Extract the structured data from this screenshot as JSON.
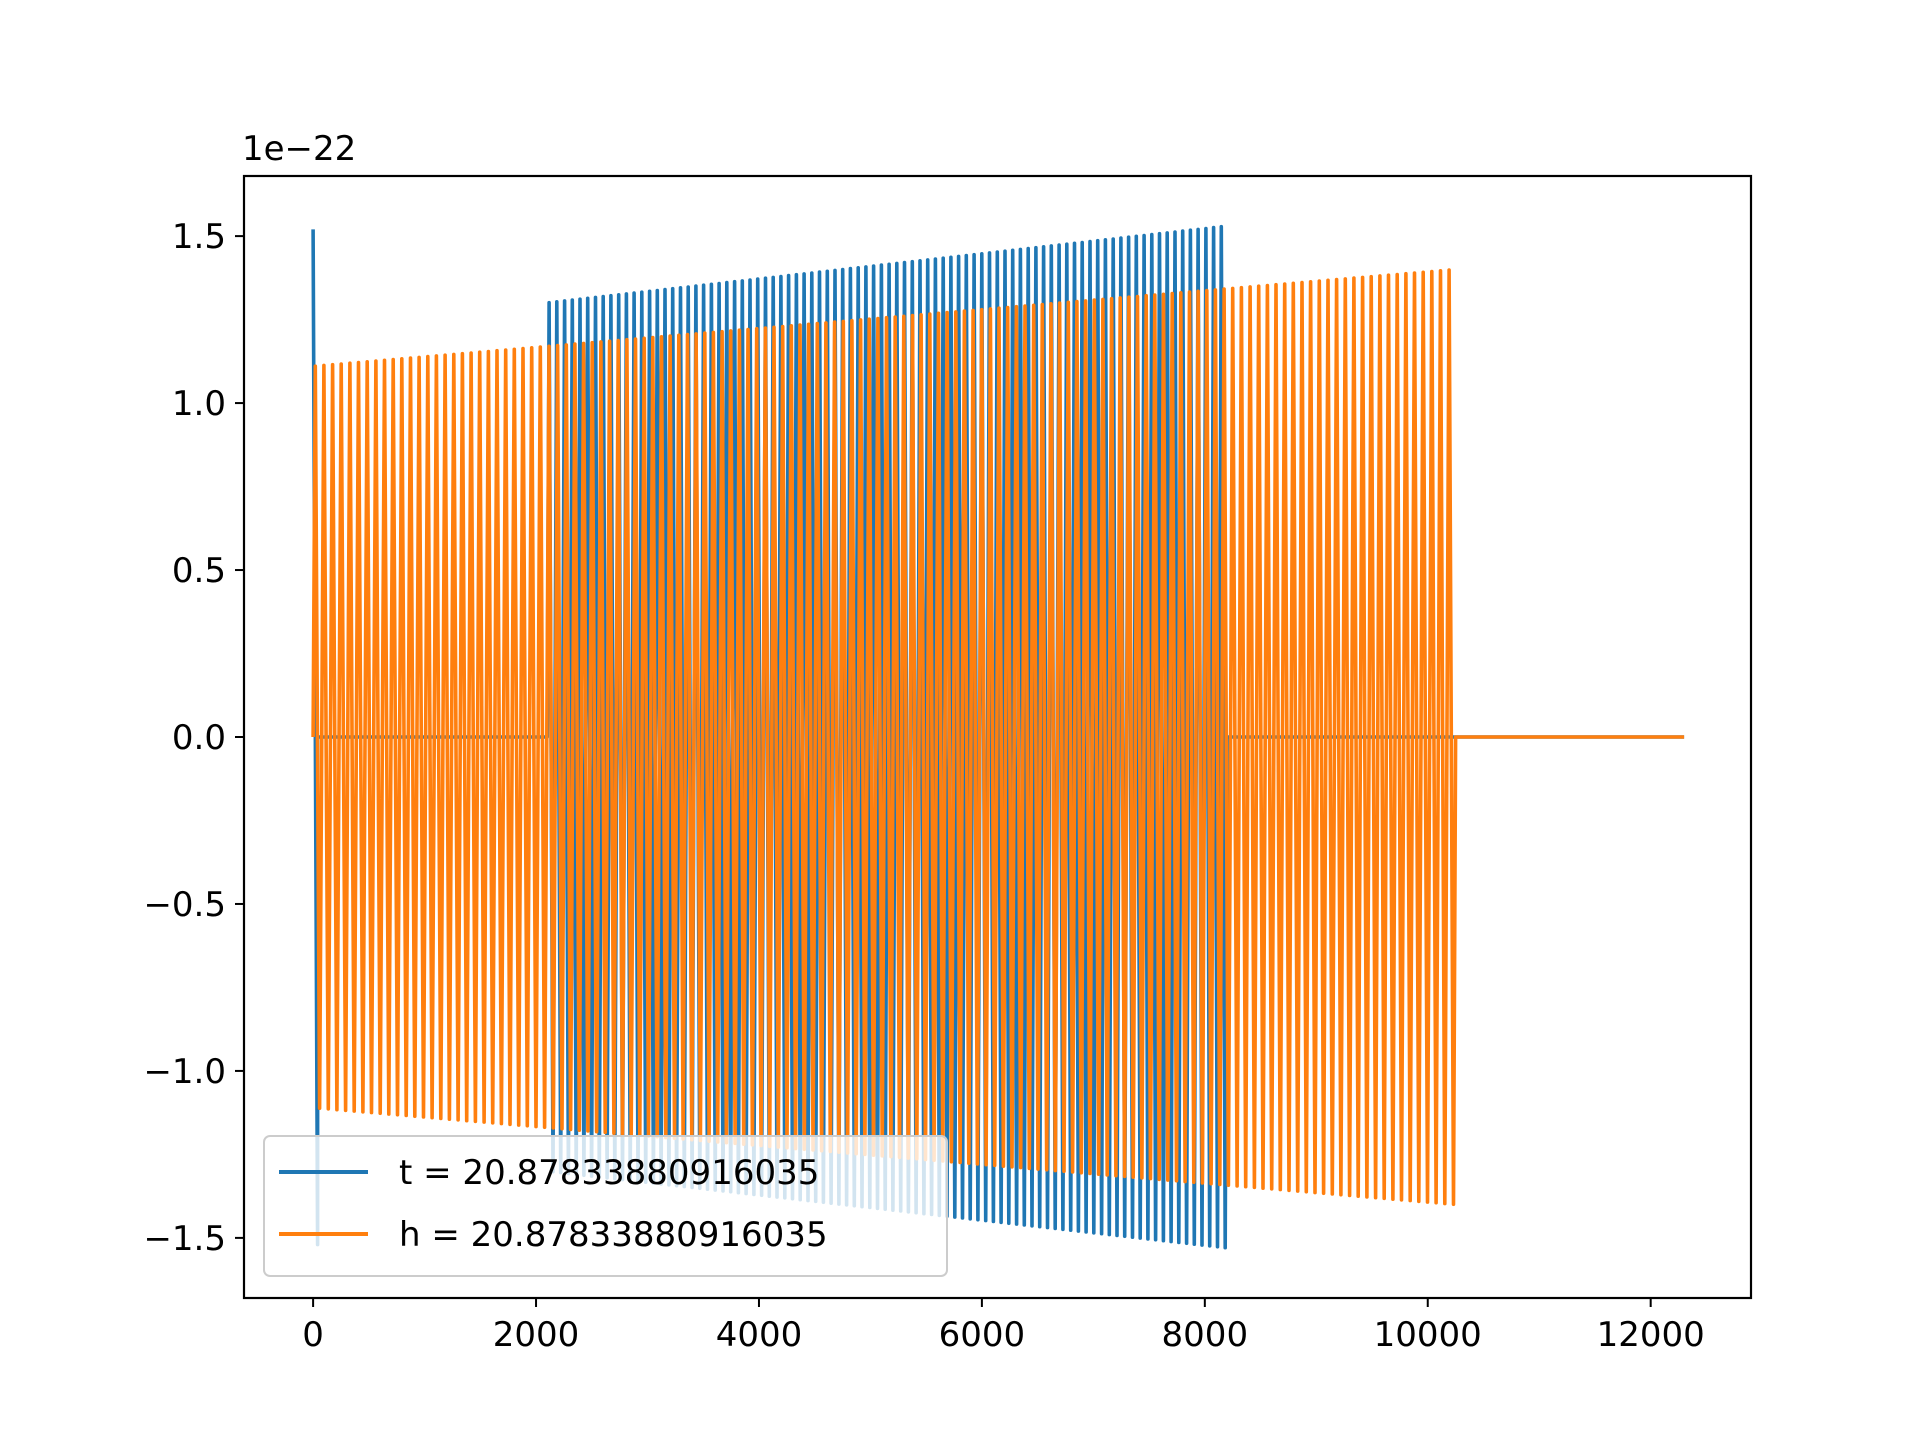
{
  "chart_data": {
    "type": "line",
    "title": "",
    "xlabel": "",
    "ylabel": "",
    "offset_text": "1e−22",
    "xlim": [
      -620,
      12900
    ],
    "ylim": [
      -1.68,
      1.68
    ],
    "xticks": [
      0,
      2000,
      4000,
      6000,
      8000,
      10000,
      12000
    ],
    "xtick_labels": [
      "0",
      "2000",
      "4000",
      "6000",
      "8000",
      "10000",
      "12000"
    ],
    "yticks": [
      -1.5,
      -1.0,
      -0.5,
      0.0,
      0.5,
      1.0,
      1.5
    ],
    "ytick_labels": [
      "−1.5",
      "−1.0",
      "−0.5",
      "0.0",
      "0.5",
      "1.0",
      "1.5"
    ],
    "grid": false,
    "legend_position": "lower-left",
    "series": [
      {
        "name": "t = 20.87833880916035",
        "color": "#1f77b4",
        "segments": [
          {
            "x_start": 0,
            "x_end": 40,
            "kind": "spike",
            "amplitude_start": 1.52,
            "amplitude_end": 1.52
          },
          {
            "x_start": 40,
            "x_end": 2100,
            "kind": "flat",
            "value": 0.0
          },
          {
            "x_start": 2100,
            "x_end": 8200,
            "kind": "oscillation",
            "cycles": 88,
            "amplitude_start": 1.3,
            "amplitude_end": 1.53
          },
          {
            "x_start": 8200,
            "x_end": 12300,
            "kind": "flat",
            "value": 0.0
          }
        ]
      },
      {
        "name": "h = 20.87833880916035",
        "color": "#ff7f0e",
        "segments": [
          {
            "x_start": 0,
            "x_end": 10250,
            "kind": "oscillation",
            "cycles": 132,
            "amplitude_start": 1.11,
            "amplitude_end": 1.4
          },
          {
            "x_start": 10250,
            "x_end": 12300,
            "kind": "flat",
            "value": 0.0
          }
        ]
      }
    ]
  }
}
